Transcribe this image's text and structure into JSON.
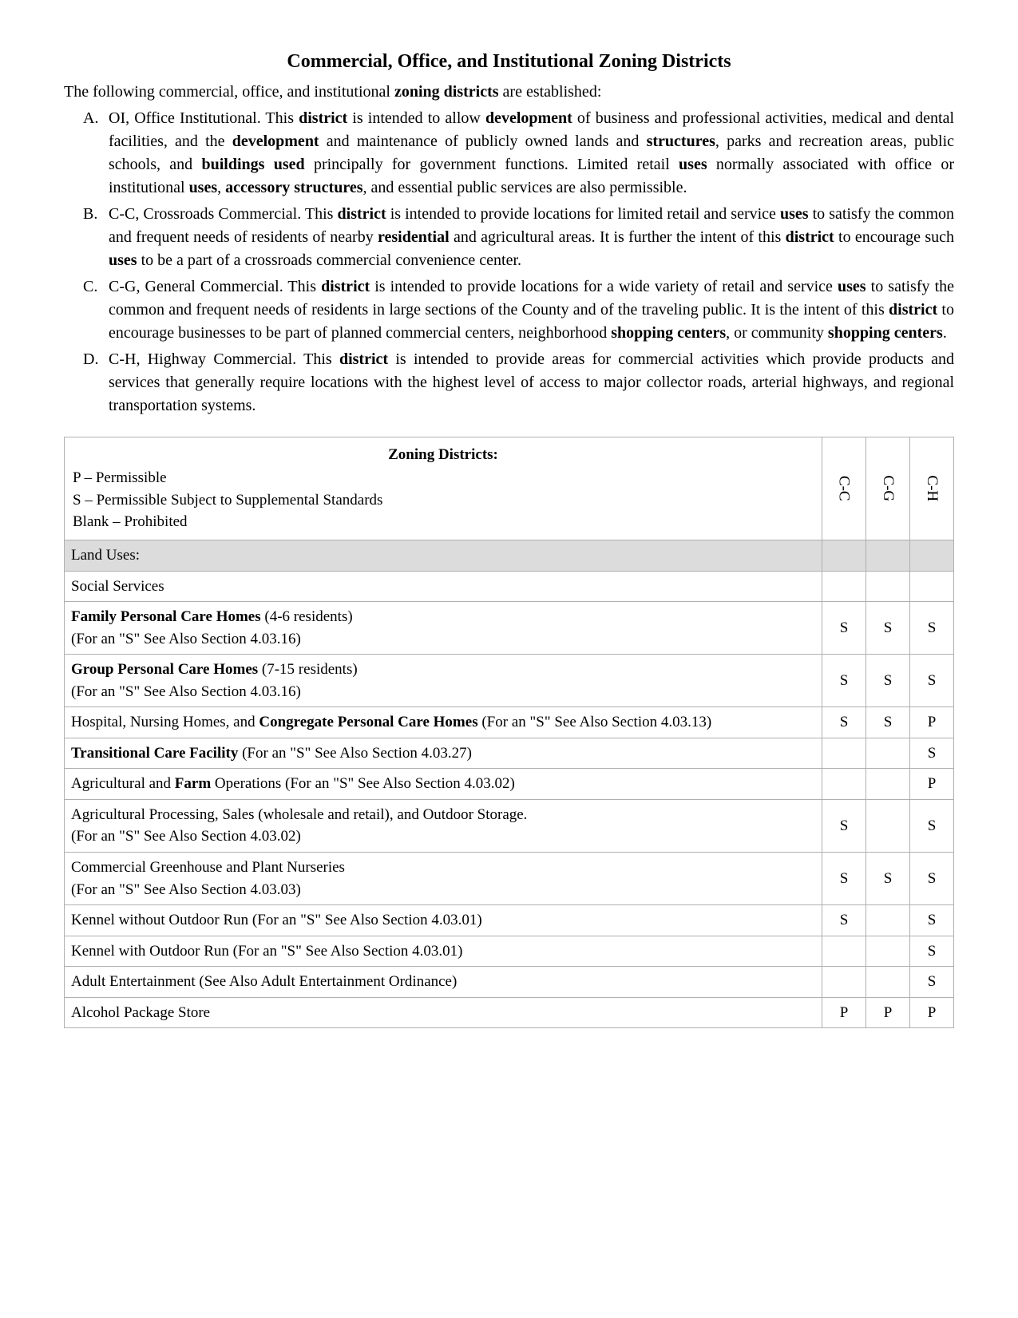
{
  "title": "Commercial, Office, and Institutional Zoning Districts",
  "intro_pre": "The following commercial, office, and institutional ",
  "intro_bold": "zoning districts",
  "intro_post": " are established:",
  "items": {
    "a": {
      "marker": "A.",
      "t1": "OI, Office Institutional.  This ",
      "b1": "district",
      "t2": " is intended to allow ",
      "b2": "development",
      "t3": " of business and professional activities, medical and dental facilities, and the ",
      "b3": "development",
      "t4": " and maintenance of publicly owned lands and ",
      "b4": "structures",
      "t5": ", parks and recreation areas, public schools, and ",
      "b5": "buildings used",
      "t6": " principally for government functions.  Limited retail ",
      "b6": "uses",
      "t7": " normally associated with office or institutional ",
      "b7": "uses",
      "t8": ", ",
      "b8": "accessory structures",
      "t9": ", and essential public services are also permissible."
    },
    "b": {
      "marker": "B.",
      "t1": "C-C, Crossroads Commercial.  This ",
      "b1": "district",
      "t2": " is intended to provide locations for limited retail and service ",
      "b2": "uses",
      "t3": " to satisfy the common and frequent needs of residents of nearby ",
      "b3": "residential",
      "t4": " and agricultural areas.  It is further the intent of this ",
      "b4": "district",
      "t5": " to encourage such ",
      "b5": "uses",
      "t6": " to be a part of a crossroads commercial convenience center."
    },
    "c": {
      "marker": "C.",
      "t1": "C-G, General Commercial.  This ",
      "b1": "district",
      "t2": " is intended to provide locations for a wide variety of retail and service ",
      "b2": "uses",
      "t3": " to satisfy the common and frequent needs of residents in large sections of the County and of the traveling public.  It is the intent of this ",
      "b3": "district",
      "t4": " to encourage businesses to be part of planned commercial centers, neighborhood ",
      "b4": "shopping centers",
      "t5": ", or community ",
      "b5": "shopping centers",
      "t6": "."
    },
    "d": {
      "marker": "D.",
      "t1": "C-H, Highway Commercial.   This ",
      "b1": "district",
      "t2": " is intended to provide areas for commercial activities which provide products and services that generally require locations with the highest level of access to major collector roads, arterial highways, and regional transportation systems."
    }
  },
  "table": {
    "legend_title": "Zoning Districts:",
    "legend_p": "P – Permissible",
    "legend_s": "S – Permissible Subject to Supplemental Standards",
    "legend_blank": "Blank – Prohibited",
    "cols": [
      "C-C",
      "C-G",
      "C-H"
    ],
    "section": "Land Uses:",
    "rows": [
      {
        "label_parts": [
          {
            "t": "Social Services"
          }
        ],
        "vals": [
          "",
          "",
          ""
        ]
      },
      {
        "label_parts": [
          {
            "b": "Family Personal Care Homes"
          },
          {
            "t": " (4-6 residents)"
          },
          {
            "br": true
          },
          {
            "t": "(For an \"S\" See Also Section 4.03.16)"
          }
        ],
        "vals": [
          "S",
          "S",
          "S"
        ]
      },
      {
        "label_parts": [
          {
            "b": "Group Personal Care Homes"
          },
          {
            "t": " (7-15 residents)"
          },
          {
            "br": true
          },
          {
            "t": "(For an \"S\" See Also Section 4.03.16)"
          }
        ],
        "vals": [
          "S",
          "S",
          "S"
        ]
      },
      {
        "label_parts": [
          {
            "t": "Hospital, Nursing Homes, and "
          },
          {
            "b": "Congregate Personal Care Homes"
          },
          {
            "t": " (For an \"S\" See Also Section 4.03.13)"
          }
        ],
        "vals": [
          "S",
          "S",
          "P"
        ]
      },
      {
        "label_parts": [
          {
            "b": "Transitional Care Facility"
          },
          {
            "t": " (For an \"S\" See Also Section 4.03.27)"
          }
        ],
        "vals": [
          "",
          "",
          "S"
        ]
      },
      {
        "label_parts": [
          {
            "t": "Agricultural and "
          },
          {
            "b": "Farm"
          },
          {
            "t": " Operations (For an \"S\" See Also Section 4.03.02)"
          }
        ],
        "vals": [
          "",
          "",
          "P"
        ]
      },
      {
        "label_parts": [
          {
            "t": "Agricultural Processing, Sales (wholesale and retail), and Outdoor Storage."
          },
          {
            "br": true
          },
          {
            "t": "(For an \"S\" See Also Section 4.03.02)"
          }
        ],
        "vals": [
          "S",
          "",
          "S"
        ]
      },
      {
        "label_parts": [
          {
            "t": "Commercial Greenhouse and Plant Nurseries"
          },
          {
            "br": true
          },
          {
            "t": "(For an \"S\" See Also Section 4.03.03)"
          }
        ],
        "vals": [
          "S",
          "S",
          "S"
        ]
      },
      {
        "label_parts": [
          {
            "t": "Kennel without Outdoor Run (For an \"S\" See Also Section 4.03.01)"
          }
        ],
        "vals": [
          "S",
          "",
          "S"
        ]
      },
      {
        "label_parts": [
          {
            "t": "Kennel with Outdoor Run (For an \"S\" See Also Section 4.03.01)"
          }
        ],
        "vals": [
          "",
          "",
          "S"
        ]
      },
      {
        "label_parts": [
          {
            "t": "Adult Entertainment (See Also Adult Entertainment Ordinance)"
          }
        ],
        "vals": [
          "",
          "",
          "S"
        ]
      },
      {
        "label_parts": [
          {
            "t": "Alcohol Package Store"
          }
        ],
        "vals": [
          "P",
          "P",
          "P"
        ]
      }
    ]
  }
}
